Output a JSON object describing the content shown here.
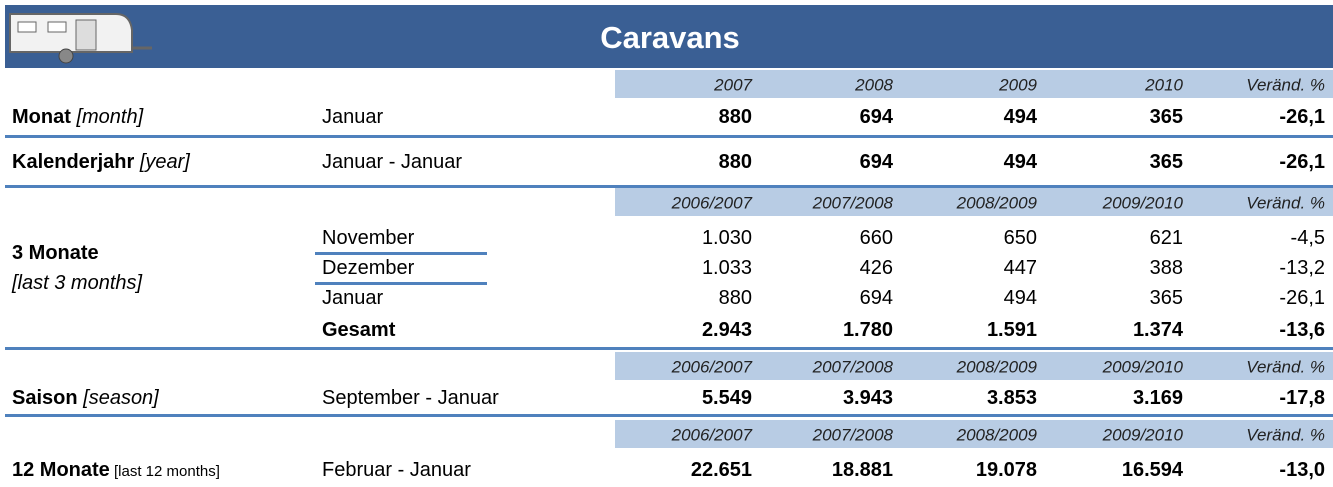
{
  "title": "Caravans",
  "sections": [
    {
      "header": [
        "2007",
        "2008",
        "2009",
        "2010",
        "Veränd. %"
      ],
      "groups": [
        {
          "label": "Monat",
          "label_note": "[month]",
          "rows": [
            {
              "period": "Januar",
              "values": [
                "880",
                "694",
                "494",
                "365",
                "-26,1"
              ]
            }
          ]
        },
        {
          "label": "Kalenderjahr",
          "label_note": "[year]",
          "rows": [
            {
              "period": "Januar - Januar",
              "values": [
                "880",
                "694",
                "494",
                "365",
                "-26,1"
              ]
            }
          ]
        }
      ]
    },
    {
      "header": [
        "2006/2007",
        "2007/2008",
        "2008/2009",
        "2009/2010",
        "Veränd. %"
      ],
      "groups": [
        {
          "label": "3 Monate",
          "label_note": "[last 3 months]",
          "rows": [
            {
              "period": "November",
              "values": [
                "1.030",
                "660",
                "650",
                "621",
                "-4,5"
              ]
            },
            {
              "period": "Dezember",
              "values": [
                "1.033",
                "426",
                "447",
                "388",
                "-13,2"
              ]
            },
            {
              "period": "Januar",
              "values": [
                "880",
                "694",
                "494",
                "365",
                "-26,1"
              ]
            },
            {
              "period": "Gesamt",
              "values": [
                "2.943",
                "1.780",
                "1.591",
                "1.374",
                "-13,6"
              ]
            }
          ]
        }
      ]
    },
    {
      "header": [
        "2006/2007",
        "2007/2008",
        "2008/2009",
        "2009/2010",
        "Veränd. %"
      ],
      "groups": [
        {
          "label": "Saison",
          "label_note": "[season]",
          "rows": [
            {
              "period": "September - Januar",
              "values": [
                "5.549",
                "3.943",
                "3.853",
                "3.169",
                "-17,8"
              ]
            }
          ]
        }
      ]
    },
    {
      "header": [
        "2006/2007",
        "2007/2008",
        "2008/2009",
        "2009/2010",
        "Veränd. %"
      ],
      "groups": [
        {
          "label": "12 Monate",
          "label_note": "[last 12 months]",
          "rows": [
            {
              "period": "Februar - Januar",
              "values": [
                "22.651",
                "18.881",
                "19.078",
                "16.594",
                "-13,0"
              ]
            }
          ]
        }
      ]
    }
  ]
}
